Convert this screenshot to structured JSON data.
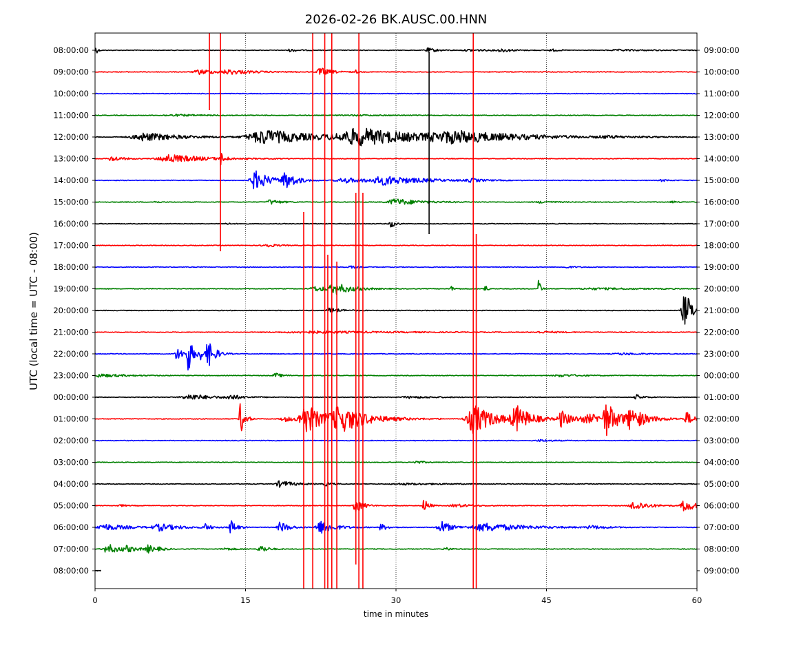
{
  "chart_data": {
    "type": "line",
    "title": "2026-02-26 BK.AUSC.00.HNN",
    "xlabel": "time in minutes",
    "ylabel": "UTC (local time = UTC - 08:00)",
    "xlim": [
      0,
      60
    ],
    "x_ticks": [
      0,
      15,
      30,
      45,
      60
    ],
    "grid": "vertical dotted lines at 15, 30, 45",
    "trace_colors": [
      "#000000",
      "#ff0000",
      "#0000ff",
      "#008000"
    ],
    "rows": [
      {
        "left": "08:00:00",
        "right": "09:00:00"
      },
      {
        "left": "09:00:00",
        "right": "10:00:00"
      },
      {
        "left": "10:00:00",
        "right": "11:00:00"
      },
      {
        "left": "11:00:00",
        "right": "12:00:00"
      },
      {
        "left": "12:00:00",
        "right": "13:00:00"
      },
      {
        "left": "13:00:00",
        "right": "14:00:00"
      },
      {
        "left": "14:00:00",
        "right": "15:00:00"
      },
      {
        "left": "15:00:00",
        "right": "16:00:00"
      },
      {
        "left": "16:00:00",
        "right": "17:00:00"
      },
      {
        "left": "17:00:00",
        "right": "18:00:00"
      },
      {
        "left": "18:00:00",
        "right": "19:00:00"
      },
      {
        "left": "19:00:00",
        "right": "20:00:00"
      },
      {
        "left": "20:00:00",
        "right": "21:00:00"
      },
      {
        "left": "21:00:00",
        "right": "22:00:00"
      },
      {
        "left": "22:00:00",
        "right": "23:00:00"
      },
      {
        "left": "23:00:00",
        "right": "00:00:00"
      },
      {
        "left": "00:00:00",
        "right": "01:00:00"
      },
      {
        "left": "01:00:00",
        "right": "02:00:00"
      },
      {
        "left": "02:00:00",
        "right": "03:00:00"
      },
      {
        "left": "03:00:00",
        "right": "04:00:00"
      },
      {
        "left": "04:00:00",
        "right": "05:00:00"
      },
      {
        "left": "05:00:00",
        "right": "06:00:00"
      },
      {
        "left": "06:00:00",
        "right": "07:00:00"
      },
      {
        "left": "07:00:00",
        "right": "08:00:00"
      },
      {
        "left": "08:00:00",
        "right": "09:00:00"
      }
    ],
    "last_row_end_minute": 0.6,
    "events": [
      {
        "row": 0,
        "t": 0.05,
        "amp": 0.6,
        "dur": 0.3
      },
      {
        "row": 0,
        "t": 19.5,
        "amp": 0.15,
        "dur": 1.2
      },
      {
        "row": 0,
        "t": 33.2,
        "amp": 0.25,
        "dur": 1.5
      },
      {
        "row": 0,
        "t": 37.5,
        "amp": 0.12,
        "dur": 3.0
      },
      {
        "row": 0,
        "t": 40.5,
        "amp": 0.2,
        "dur": 1.5
      },
      {
        "row": 0,
        "t": 45.5,
        "amp": 0.15,
        "dur": 1.0
      },
      {
        "row": 0,
        "t": 52.5,
        "amp": 0.08,
        "dur": 5.0
      },
      {
        "row": 1,
        "t": 10.5,
        "amp": 0.3,
        "dur": 2.5
      },
      {
        "row": 1,
        "t": 13.5,
        "amp": 0.25,
        "dur": 3.5
      },
      {
        "row": 1,
        "t": 22.5,
        "amp": 0.5,
        "dur": 1.5
      },
      {
        "row": 1,
        "t": 26.0,
        "amp": 0.2,
        "dur": 0.4
      },
      {
        "row": 3,
        "t": 8.0,
        "amp": 0.1,
        "dur": 5.0
      },
      {
        "row": 3,
        "t": 26.0,
        "amp": 0.06,
        "dur": 6.0
      },
      {
        "row": 4,
        "t": 5.0,
        "amp": 0.5,
        "dur": 5.5
      },
      {
        "row": 4,
        "t": 17.0,
        "amp": 0.9,
        "dur": 7.0
      },
      {
        "row": 4,
        "t": 26.5,
        "amp": 1.0,
        "dur": 9.0
      },
      {
        "row": 4,
        "t": 36.0,
        "amp": 0.6,
        "dur": 10.0
      },
      {
        "row": 4,
        "t": 51.0,
        "amp": 0.12,
        "dur": 4.0
      },
      {
        "row": 5,
        "t": 1.7,
        "amp": 0.35,
        "dur": 1.5
      },
      {
        "row": 5,
        "t": 7.5,
        "amp": 0.5,
        "dur": 5.0
      },
      {
        "row": 5,
        "t": 12.5,
        "amp": 0.8,
        "dur": 0.5
      },
      {
        "row": 6,
        "t": 16.0,
        "amp": 1.2,
        "dur": 2.0
      },
      {
        "row": 6,
        "t": 19.0,
        "amp": 1.0,
        "dur": 1.5
      },
      {
        "row": 6,
        "t": 25.0,
        "amp": 0.3,
        "dur": 4.0
      },
      {
        "row": 6,
        "t": 29.0,
        "amp": 0.5,
        "dur": 5.5
      },
      {
        "row": 6,
        "t": 37.5,
        "amp": 0.2,
        "dur": 1.5
      },
      {
        "row": 6,
        "t": 56.5,
        "amp": 0.12,
        "dur": 1.0
      },
      {
        "row": 7,
        "t": 6.0,
        "amp": 0.2,
        "dur": 0.4
      },
      {
        "row": 7,
        "t": 17.5,
        "amp": 0.3,
        "dur": 1.5
      },
      {
        "row": 7,
        "t": 30.0,
        "amp": 0.4,
        "dur": 3.5
      },
      {
        "row": 7,
        "t": 44.5,
        "amp": 0.12,
        "dur": 2.0
      },
      {
        "row": 7,
        "t": 57.5,
        "amp": 0.2,
        "dur": 0.5
      },
      {
        "row": 8,
        "t": 13.0,
        "amp": 0.12,
        "dur": 0.6
      },
      {
        "row": 8,
        "t": 29.5,
        "amp": 0.5,
        "dur": 0.6
      },
      {
        "row": 9,
        "t": 17.0,
        "amp": 0.25,
        "dur": 1.5
      },
      {
        "row": 10,
        "t": 25.5,
        "amp": 0.15,
        "dur": 1.0
      },
      {
        "row": 10,
        "t": 47.0,
        "amp": 0.1,
        "dur": 1.5
      },
      {
        "row": 11,
        "t": 22.0,
        "amp": 0.3,
        "dur": 2.5
      },
      {
        "row": 11,
        "t": 24.0,
        "amp": 0.6,
        "dur": 2.5
      },
      {
        "row": 11,
        "t": 35.5,
        "amp": 0.3,
        "dur": 0.5
      },
      {
        "row": 11,
        "t": 38.8,
        "amp": 0.8,
        "dur": 0.3
      },
      {
        "row": 11,
        "t": 44.2,
        "amp": 1.2,
        "dur": 0.3
      },
      {
        "row": 11,
        "t": 50.0,
        "amp": 0.1,
        "dur": 8.0
      },
      {
        "row": 12,
        "t": 23.5,
        "amp": 0.35,
        "dur": 1.5
      },
      {
        "row": 12,
        "t": 58.8,
        "amp": 2.2,
        "dur": 1.2
      },
      {
        "row": 13,
        "t": 22.0,
        "amp": 0.12,
        "dur": 14.0
      },
      {
        "row": 13,
        "t": 44.5,
        "amp": 0.1,
        "dur": 3.0
      },
      {
        "row": 14,
        "t": 8.2,
        "amp": 0.8,
        "dur": 1.0
      },
      {
        "row": 14,
        "t": 9.3,
        "amp": 2.2,
        "dur": 0.6
      },
      {
        "row": 14,
        "t": 10.5,
        "amp": 0.6,
        "dur": 1.0
      },
      {
        "row": 14,
        "t": 11.3,
        "amp": 1.5,
        "dur": 1.0
      },
      {
        "row": 14,
        "t": 52.5,
        "amp": 0.12,
        "dur": 3.0
      },
      {
        "row": 15,
        "t": 0.5,
        "amp": 0.2,
        "dur": 4.0
      },
      {
        "row": 15,
        "t": 18.0,
        "amp": 0.3,
        "dur": 1.0
      },
      {
        "row": 15,
        "t": 46.5,
        "amp": 0.15,
        "dur": 3.0
      },
      {
        "row": 16,
        "t": 9.5,
        "amp": 0.35,
        "dur": 3.5
      },
      {
        "row": 16,
        "t": 13.5,
        "amp": 0.3,
        "dur": 1.5
      },
      {
        "row": 16,
        "t": 31.5,
        "amp": 0.12,
        "dur": 4.0
      },
      {
        "row": 16,
        "t": 54.0,
        "amp": 0.3,
        "dur": 1.0
      },
      {
        "row": 17,
        "t": 14.5,
        "amp": 2.0,
        "dur": 0.6
      },
      {
        "row": 17,
        "t": 19.0,
        "amp": 0.3,
        "dur": 2.0
      },
      {
        "row": 17,
        "t": 21.0,
        "amp": 1.8,
        "dur": 2.5
      },
      {
        "row": 17,
        "t": 24.5,
        "amp": 1.5,
        "dur": 4.0
      },
      {
        "row": 17,
        "t": 37.8,
        "amp": 1.8,
        "dur": 3.0
      },
      {
        "row": 17,
        "t": 42.0,
        "amp": 1.5,
        "dur": 2.0
      },
      {
        "row": 17,
        "t": 46.5,
        "amp": 1.0,
        "dur": 1.5
      },
      {
        "row": 17,
        "t": 49.5,
        "amp": 0.5,
        "dur": 5.0
      },
      {
        "row": 17,
        "t": 51.0,
        "amp": 1.8,
        "dur": 1.5
      },
      {
        "row": 17,
        "t": 53.5,
        "amp": 1.2,
        "dur": 2.0
      },
      {
        "row": 17,
        "t": 59.0,
        "amp": 0.8,
        "dur": 1.0
      },
      {
        "row": 18,
        "t": 44.5,
        "amp": 0.12,
        "dur": 2.0
      },
      {
        "row": 19,
        "t": 32.0,
        "amp": 0.15,
        "dur": 1.5
      },
      {
        "row": 20,
        "t": 18.5,
        "amp": 0.4,
        "dur": 2.0
      },
      {
        "row": 20,
        "t": 23.0,
        "amp": 0.2,
        "dur": 1.0
      },
      {
        "row": 20,
        "t": 31.0,
        "amp": 0.1,
        "dur": 6.0
      },
      {
        "row": 21,
        "t": 2.5,
        "amp": 0.12,
        "dur": 1.0
      },
      {
        "row": 21,
        "t": 26.0,
        "amp": 0.9,
        "dur": 1.0
      },
      {
        "row": 21,
        "t": 32.8,
        "amp": 0.9,
        "dur": 0.6
      },
      {
        "row": 21,
        "t": 36.0,
        "amp": 0.2,
        "dur": 2.5
      },
      {
        "row": 21,
        "t": 53.8,
        "amp": 0.6,
        "dur": 2.0
      },
      {
        "row": 21,
        "t": 58.8,
        "amp": 0.8,
        "dur": 1.5
      },
      {
        "row": 22,
        "t": 1.0,
        "amp": 0.4,
        "dur": 3.5
      },
      {
        "row": 22,
        "t": 6.5,
        "amp": 0.4,
        "dur": 3.0
      },
      {
        "row": 22,
        "t": 11.0,
        "amp": 0.4,
        "dur": 0.8
      },
      {
        "row": 22,
        "t": 13.5,
        "amp": 1.0,
        "dur": 0.8
      },
      {
        "row": 22,
        "t": 18.5,
        "amp": 0.7,
        "dur": 1.2
      },
      {
        "row": 22,
        "t": 22.5,
        "amp": 0.8,
        "dur": 2.0
      },
      {
        "row": 22,
        "t": 28.5,
        "amp": 0.4,
        "dur": 1.0
      },
      {
        "row": 22,
        "t": 34.5,
        "amp": 0.8,
        "dur": 1.5
      },
      {
        "row": 22,
        "t": 39.0,
        "amp": 0.5,
        "dur": 6.0
      },
      {
        "row": 22,
        "t": 49.5,
        "amp": 0.2,
        "dur": 2.0
      },
      {
        "row": 23,
        "t": 1.3,
        "amp": 0.6,
        "dur": 1.8
      },
      {
        "row": 23,
        "t": 3.2,
        "amp": 0.3,
        "dur": 1.5
      },
      {
        "row": 23,
        "t": 5.3,
        "amp": 0.45,
        "dur": 1.0
      },
      {
        "row": 23,
        "t": 6.5,
        "amp": 0.15,
        "dur": 1.0
      },
      {
        "row": 23,
        "t": 13.0,
        "amp": 0.15,
        "dur": 1.5
      },
      {
        "row": 23,
        "t": 16.5,
        "amp": 0.5,
        "dur": 1.0
      },
      {
        "row": 23,
        "t": 35.0,
        "amp": 0.15,
        "dur": 1.0
      }
    ],
    "spikes": [
      {
        "t": 11.4,
        "y0": 48,
        "y1": 160
      },
      {
        "t": 12.5,
        "y0": 48,
        "y1": 365
      },
      {
        "t": 20.8,
        "y0": 308,
        "y1": 855
      },
      {
        "t": 21.7,
        "y0": 48,
        "y1": 855
      },
      {
        "t": 22.9,
        "y0": 48,
        "y1": 855
      },
      {
        "t": 23.2,
        "y0": 370,
        "y1": 855
      },
      {
        "t": 23.6,
        "y0": 48,
        "y1": 855
      },
      {
        "t": 24.1,
        "y0": 380,
        "y1": 855
      },
      {
        "t": 26.0,
        "y0": 280,
        "y1": 820
      },
      {
        "t": 26.3,
        "y0": 48,
        "y1": 855
      },
      {
        "t": 26.7,
        "y0": 280,
        "y1": 855
      },
      {
        "t": 37.7,
        "y0": 48,
        "y1": 855
      },
      {
        "t": 38.0,
        "y0": 340,
        "y1": 855
      }
    ],
    "black_spikes": [
      {
        "t": 33.3,
        "y0": 75,
        "y1": 340
      }
    ]
  }
}
